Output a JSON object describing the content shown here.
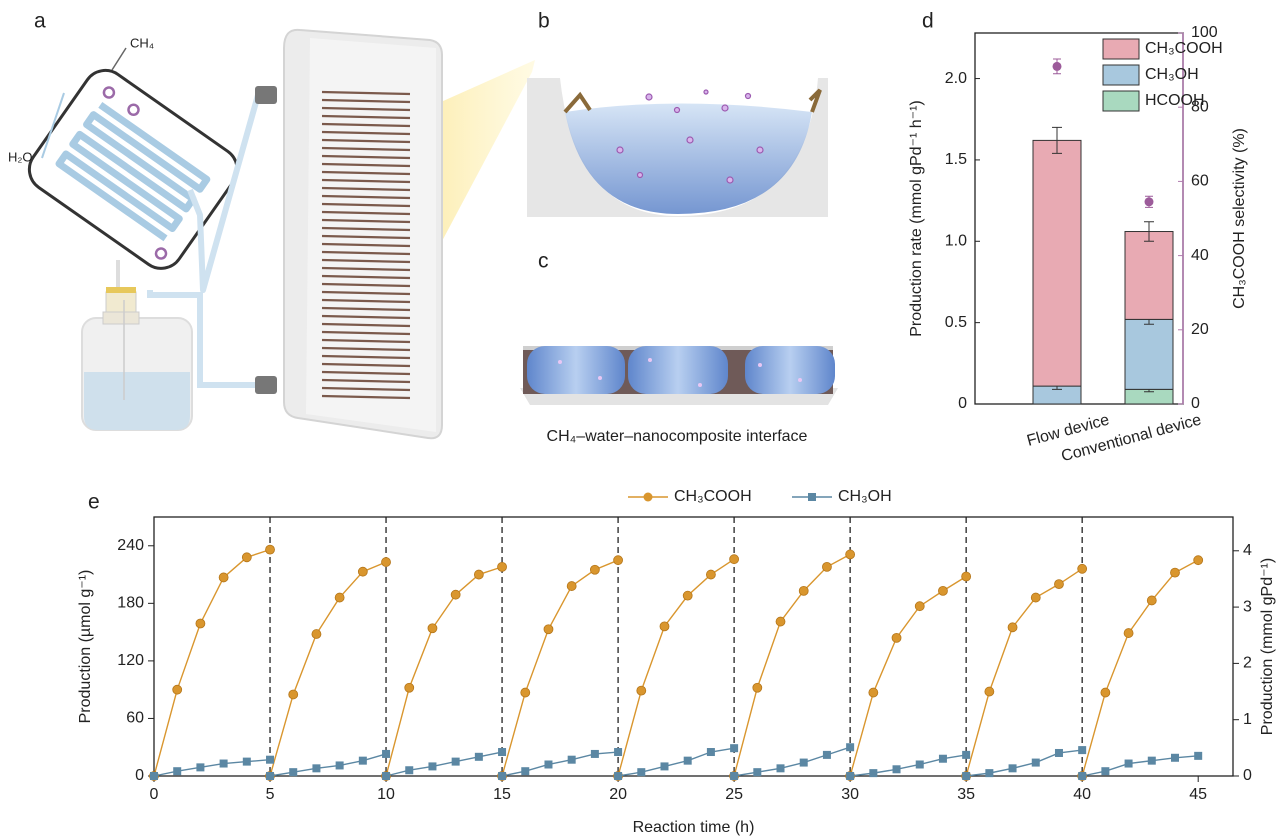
{
  "figure": {
    "panel_labels": [
      "a",
      "b",
      "c",
      "d",
      "e"
    ],
    "illustration_labels": {
      "ch4": "CH₄",
      "h2o": "H₂O"
    },
    "caption_c": "CH₄–water–nanocomposite interface"
  },
  "chart_data": [
    {
      "type": "bar",
      "stacked": true,
      "categories": [
        "Flow device",
        "Conventional device"
      ],
      "series": [
        {
          "name": "HCOOH",
          "color": "#a9d9bf",
          "values": [
            0,
            0.09
          ],
          "errors": [
            null,
            0.015
          ]
        },
        {
          "name": "CH₃OH",
          "color": "#a8c8de",
          "values": [
            0.11,
            0.43
          ],
          "errors": [
            0.02,
            0.03
          ]
        },
        {
          "name": "CH₃COOH",
          "color": "#e8aab3",
          "values": [
            1.51,
            0.54
          ],
          "errors": [
            0.08,
            0.06
          ]
        }
      ],
      "selectivity": {
        "axis": "y2",
        "color": "#9c5b9a",
        "values": [
          91,
          54.5
        ],
        "errors": [
          2,
          1.5
        ]
      },
      "ylabel": "Production rate (mmol gPd⁻¹ h⁻¹)",
      "y2label": "CH₃COOH selectivity (%)",
      "y2color": "#b07aae",
      "ylim": [
        0,
        2.28
      ],
      "yticks": [
        0,
        0.5,
        {
          "value": 1,
          "label": "1.0"
        },
        1.5,
        {
          "value": 2,
          "label": "2.0"
        }
      ],
      "y2lim": [
        0,
        100
      ],
      "y2ticks": [
        0,
        20,
        40,
        60,
        80,
        100
      ],
      "legend": "upper right"
    },
    {
      "type": "line",
      "x": [
        0,
        1,
        2,
        3,
        4,
        5,
        5,
        5,
        6,
        7,
        8,
        9,
        10,
        10,
        10,
        11,
        12,
        13,
        14,
        15,
        15,
        15,
        16,
        17,
        18,
        19,
        20,
        20,
        20,
        21,
        22,
        23,
        24,
        25,
        25,
        25,
        26,
        27,
        28,
        29,
        30,
        30,
        30,
        31,
        32,
        33,
        34,
        35,
        35,
        35,
        36,
        37,
        38,
        39,
        40,
        40,
        40,
        41,
        42,
        43,
        44,
        45
      ],
      "series": [
        {
          "name": "CH₃COOH",
          "color": "#d9962e",
          "marker": "circle",
          "values": [
            0,
            90,
            159,
            207,
            228,
            236,
            null,
            0,
            85,
            148,
            186,
            213,
            223,
            null,
            0,
            92,
            154,
            189,
            210,
            218,
            null,
            0,
            87,
            153,
            198,
            215,
            225,
            null,
            0,
            89,
            156,
            188,
            210,
            226,
            null,
            0,
            92,
            161,
            193,
            218,
            231,
            null,
            0,
            87,
            144,
            177,
            193,
            208,
            null,
            0,
            88,
            155,
            186,
            200,
            216,
            null,
            0,
            87,
            149,
            183,
            212,
            225
          ]
        },
        {
          "name": "CH₃OH",
          "color": "#5b87a3",
          "marker": "square",
          "values": [
            0,
            5,
            9,
            13,
            15,
            17,
            null,
            0,
            4,
            8,
            11,
            16,
            23,
            null,
            0,
            6,
            10,
            15,
            20,
            25,
            null,
            0,
            5,
            12,
            17,
            23,
            25,
            null,
            0,
            4,
            10,
            16,
            25,
            29,
            null,
            0,
            4,
            8,
            14,
            22,
            30,
            null,
            0,
            3,
            7,
            12,
            18,
            22,
            null,
            0,
            3,
            8,
            14,
            24,
            27,
            null,
            0,
            5,
            13,
            16,
            19,
            21
          ]
        }
      ],
      "xlabel": "Reaction time (h)",
      "ylabel": "Production (µmol g⁻¹)",
      "y2label": "Production (mmol gPd⁻¹)",
      "xlim": [
        0,
        46.5
      ],
      "xticks": [
        0,
        5,
        10,
        15,
        20,
        25,
        30,
        35,
        40,
        45
      ],
      "ylim": [
        0,
        270
      ],
      "yticks": [
        0,
        60,
        120,
        180,
        240
      ],
      "y2lim": [
        0,
        4.6
      ],
      "y2ticks": [
        0,
        1,
        2,
        3,
        4
      ],
      "dividers": [
        5,
        10,
        15,
        20,
        25,
        30,
        35,
        40
      ],
      "legend": "top center"
    }
  ]
}
